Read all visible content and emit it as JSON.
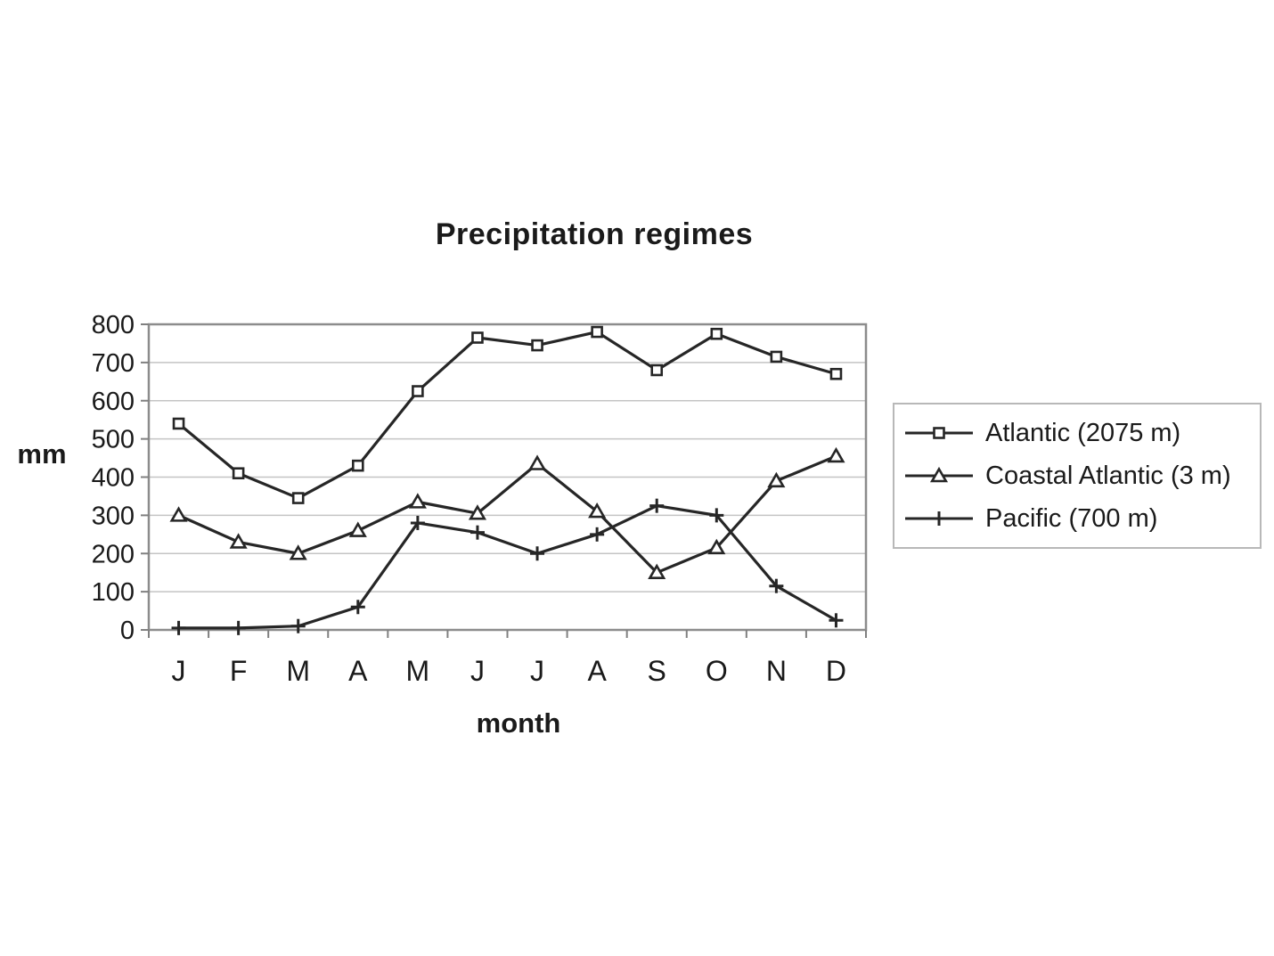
{
  "chart_data": {
    "type": "line",
    "title": "Precipitation regimes",
    "xlabel": "month",
    "ylabel": "mm",
    "categories": [
      "J",
      "F",
      "M",
      "A",
      "M",
      "J",
      "J",
      "A",
      "S",
      "O",
      "N",
      "D"
    ],
    "ylim": [
      0,
      800
    ],
    "ytick_step": 100,
    "grid": true,
    "legend_position": "right",
    "series": [
      {
        "name": "Atlantic (2075 m)",
        "marker": "square",
        "values": [
          540,
          410,
          345,
          430,
          625,
          765,
          745,
          780,
          680,
          775,
          715,
          670
        ]
      },
      {
        "name": "Coastal Atlantic (3 m)",
        "marker": "triangle",
        "values": [
          300,
          230,
          200,
          260,
          335,
          305,
          435,
          310,
          150,
          215,
          390,
          455
        ]
      },
      {
        "name": "Pacific (700 m)",
        "marker": "plus",
        "values": [
          5,
          5,
          10,
          60,
          280,
          255,
          200,
          250,
          325,
          300,
          115,
          25
        ]
      }
    ]
  },
  "colors": {
    "series_line": "#262626",
    "marker_fill": "#ffffff",
    "gridline": "#c4c4c4",
    "plot_border": "#8c8c8c",
    "tick": "#808080",
    "text": "#1a1a1a",
    "background": "#ffffff",
    "legend_border": "#b8b8b8"
  }
}
